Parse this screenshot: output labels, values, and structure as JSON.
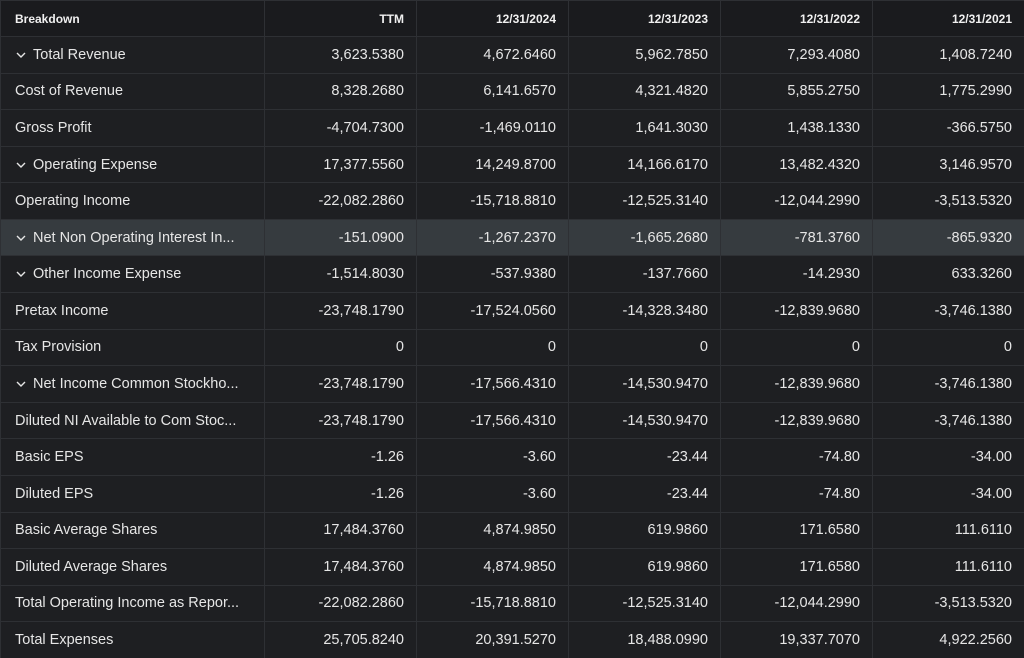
{
  "table": {
    "header": [
      "Breakdown",
      "TTM",
      "12/31/2024",
      "12/31/2023",
      "12/31/2022",
      "12/31/2021"
    ],
    "rows": [
      {
        "label": "Total Revenue",
        "expandable": true,
        "values": [
          "3,623.5380",
          "4,672.6460",
          "5,962.7850",
          "7,293.4080",
          "1,408.7240"
        ]
      },
      {
        "label": "Cost of Revenue",
        "values": [
          "8,328.2680",
          "6,141.6570",
          "4,321.4820",
          "5,855.2750",
          "1,775.2990"
        ]
      },
      {
        "label": "Gross Profit",
        "values": [
          "-4,704.7300",
          "-1,469.0110",
          "1,641.3030",
          "1,438.1330",
          "-366.5750"
        ]
      },
      {
        "label": "Operating Expense",
        "expandable": true,
        "values": [
          "17,377.5560",
          "14,249.8700",
          "14,166.6170",
          "13,482.4320",
          "3,146.9570"
        ]
      },
      {
        "label": "Operating Income",
        "values": [
          "-22,082.2860",
          "-15,718.8810",
          "-12,525.3140",
          "-12,044.2990",
          "-3,513.5320"
        ]
      },
      {
        "label": "Net Non Operating Interest In...",
        "expandable": true,
        "highlighted": true,
        "values": [
          "-151.0900",
          "-1,267.2370",
          "-1,665.2680",
          "-781.3760",
          "-865.9320"
        ]
      },
      {
        "label": "Other Income Expense",
        "expandable": true,
        "values": [
          "-1,514.8030",
          "-537.9380",
          "-137.7660",
          "-14.2930",
          "633.3260"
        ]
      },
      {
        "label": "Pretax Income",
        "values": [
          "-23,748.1790",
          "-17,524.0560",
          "-14,328.3480",
          "-12,839.9680",
          "-3,746.1380"
        ]
      },
      {
        "label": "Tax Provision",
        "values": [
          "0",
          "0",
          "0",
          "0",
          "0"
        ]
      },
      {
        "label": "Net Income Common Stockho...",
        "expandable": true,
        "values": [
          "-23,748.1790",
          "-17,566.4310",
          "-14,530.9470",
          "-12,839.9680",
          "-3,746.1380"
        ]
      },
      {
        "label": "Diluted NI Available to Com Stoc...",
        "values": [
          "-23,748.1790",
          "-17,566.4310",
          "-14,530.9470",
          "-12,839.9680",
          "-3,746.1380"
        ]
      },
      {
        "label": "Basic EPS",
        "values": [
          "-1.26",
          "-3.60",
          "-23.44",
          "-74.80",
          "-34.00"
        ]
      },
      {
        "label": "Diluted EPS",
        "values": [
          "-1.26",
          "-3.60",
          "-23.44",
          "-74.80",
          "-34.00"
        ]
      },
      {
        "label": "Basic Average Shares",
        "values": [
          "17,484.3760",
          "4,874.9850",
          "619.9860",
          "171.6580",
          "111.6110"
        ]
      },
      {
        "label": "Diluted Average Shares",
        "values": [
          "17,484.3760",
          "4,874.9850",
          "619.9860",
          "171.6580",
          "111.6110"
        ]
      },
      {
        "label": "Total Operating Income as Repor...",
        "values": [
          "-22,082.2860",
          "-15,718.8810",
          "-12,525.3140",
          "-12,044.2990",
          "-3,513.5320"
        ]
      },
      {
        "label": "Total Expenses",
        "values": [
          "25,705.8240",
          "20,391.5270",
          "18,488.0990",
          "19,337.7070",
          "4,922.2560"
        ]
      }
    ]
  }
}
